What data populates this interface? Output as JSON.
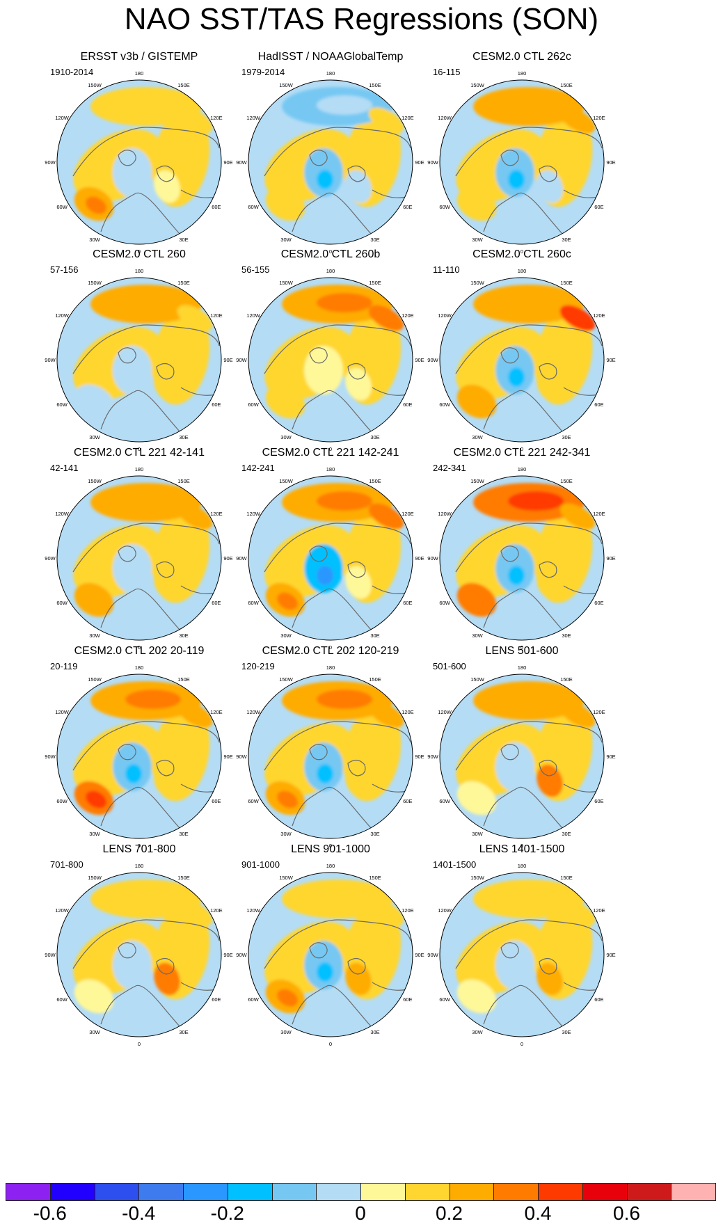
{
  "title": "NAO SST/TAS Regressions (SON)",
  "longitude_labels": [
    "180",
    "150E",
    "120E",
    "90E",
    "60E",
    "30E",
    "0",
    "30W",
    "60W",
    "90W",
    "120W",
    "150W"
  ],
  "panels": [
    {
      "title": "ERSST v3b / GISTEMP",
      "period": "1910-2014",
      "pattern": {
        "npac": 0.05,
        "natl": 0.15,
        "arctic": -0.1,
        "eurasia": -0.05,
        "siberia": 0.05
      }
    },
    {
      "title": "HadISST / NOAAGlobalTemp",
      "period": "1979-2014",
      "pattern": {
        "npac": -0.15,
        "natl": 0.05,
        "arctic": -0.15,
        "eurasia": -0.1,
        "siberia": 0.05
      }
    },
    {
      "title": "CESM2.0 CTL 262c",
      "period": "16-115",
      "pattern": {
        "npac": 0.1,
        "natl": 0.05,
        "arctic": -0.15,
        "eurasia": -0.1,
        "siberia": 0.15
      }
    },
    {
      "title": "CESM2.0 CTL 260",
      "period": "57-156",
      "pattern": {
        "npac": 0.12,
        "natl": -0.1,
        "arctic": -0.1,
        "eurasia": 0.05,
        "siberia": 0.05
      }
    },
    {
      "title": "CESM2.0 CTL 260b",
      "period": "56-155",
      "pattern": {
        "npac": 0.15,
        "natl": 0.05,
        "arctic": -0.05,
        "eurasia": -0.05,
        "siberia": 0.2
      }
    },
    {
      "title": "CESM2.0 CTL 260c",
      "period": "11-110",
      "pattern": {
        "npac": 0.12,
        "natl": 0.12,
        "arctic": -0.15,
        "eurasia": 0.05,
        "siberia": 0.3
      }
    },
    {
      "title": "CESM2.0 CTL 221 42-141",
      "period": "42-141",
      "pattern": {
        "npac": 0.1,
        "natl": 0.1,
        "arctic": -0.1,
        "eurasia": 0.05,
        "siberia": 0.15
      }
    },
    {
      "title": "CESM2.0 CTL 221 142-241",
      "period": "142-241",
      "pattern": {
        "npac": 0.15,
        "natl": 0.18,
        "arctic": -0.25,
        "eurasia": -0.05,
        "siberia": 0.2
      }
    },
    {
      "title": "CESM2.0 CTL 221 242-341",
      "period": "242-341",
      "pattern": {
        "npac": 0.25,
        "natl": 0.2,
        "arctic": -0.15,
        "eurasia": 0.05,
        "siberia": 0.15
      }
    },
    {
      "title": "CESM2.0 CTL 202 20-119",
      "period": "20-119",
      "pattern": {
        "npac": 0.18,
        "natl": 0.25,
        "arctic": -0.15,
        "eurasia": 0.05,
        "siberia": 0.1
      }
    },
    {
      "title": "CESM2.0 CTL 202 120-219",
      "period": "120-219",
      "pattern": {
        "npac": 0.18,
        "natl": 0.15,
        "arctic": -0.15,
        "eurasia": 0.05,
        "siberia": 0.15
      }
    },
    {
      "title": "LENS 501-600",
      "period": "501-600",
      "pattern": {
        "npac": 0.12,
        "natl": -0.05,
        "arctic": -0.1,
        "eurasia": 0.2,
        "siberia": 0.15
      }
    },
    {
      "title": "LENS 701-800",
      "period": "701-800",
      "pattern": {
        "npac": 0.05,
        "natl": -0.05,
        "arctic": -0.1,
        "eurasia": 0.2,
        "siberia": 0.05
      }
    },
    {
      "title": "LENS 901-1000",
      "period": "901-1000",
      "pattern": {
        "npac": 0.05,
        "natl": 0.15,
        "arctic": -0.15,
        "eurasia": 0.15,
        "siberia": 0.05
      }
    },
    {
      "title": "LENS 1401-1500",
      "period": "1401-1500",
      "pattern": {
        "npac": 0.05,
        "natl": -0.05,
        "arctic": -0.08,
        "eurasia": 0.1,
        "siberia": 0.05
      }
    }
  ],
  "colorbar": {
    "colors": [
      "#8c21f2",
      "#2100ff",
      "#2d4ff0",
      "#3d7bef",
      "#2997ff",
      "#00c0ff",
      "#76c8f3",
      "#b4dcf5",
      "#fff899",
      "#ffd62f",
      "#ffac00",
      "#ff7b00",
      "#ff3a00",
      "#e8000b",
      "#ce1a1b",
      "#ffb2b2"
    ],
    "tick_labels": [
      "-0.6",
      "-0.4",
      "-0.2",
      "0",
      "0.2",
      "0.4",
      "0.6"
    ],
    "levels": [
      -0.7,
      -0.6,
      -0.5,
      -0.4,
      -0.3,
      -0.2,
      -0.1,
      -0.05,
      0.05,
      0.1,
      0.2,
      0.3,
      0.4,
      0.5,
      0.6,
      0.7
    ]
  }
}
